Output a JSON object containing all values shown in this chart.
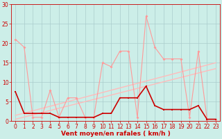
{
  "background_color": "#cceee8",
  "grid_color": "#aacccc",
  "xlabel": "Vent moyen/en rafales ( km/h )",
  "xlabel_color": "#cc0000",
  "xlabel_fontsize": 6.5,
  "tick_color": "#cc0000",
  "tick_fontsize": 5.5,
  "xlim": [
    -0.5,
    23.5
  ],
  "ylim": [
    0,
    30
  ],
  "yticks": [
    0,
    5,
    10,
    15,
    20,
    25,
    30
  ],
  "xticks": [
    0,
    1,
    2,
    3,
    4,
    5,
    6,
    7,
    8,
    9,
    10,
    11,
    12,
    13,
    14,
    15,
    16,
    17,
    18,
    19,
    20,
    21,
    22,
    23
  ],
  "line_light_x": [
    0,
    1,
    2,
    3,
    4,
    5,
    6,
    7,
    8,
    9,
    10,
    11,
    12,
    13,
    14,
    15,
    16,
    17,
    18,
    19,
    20,
    21,
    22,
    23
  ],
  "line_light_y": [
    21,
    19,
    1,
    1,
    8,
    1,
    6,
    6,
    1,
    1,
    15,
    14,
    18,
    18,
    1,
    27,
    19,
    16,
    16,
    16,
    1,
    18,
    0.5,
    0.5
  ],
  "line_dark_x": [
    0,
    1,
    2,
    3,
    4,
    5,
    6,
    7,
    8,
    9,
    10,
    11,
    12,
    13,
    14,
    15,
    16,
    17,
    18,
    19,
    20,
    21,
    22,
    23
  ],
  "line_dark_y": [
    7.5,
    2,
    2,
    2,
    2,
    1,
    1,
    1,
    1,
    1,
    2,
    2,
    6,
    6,
    6,
    9,
    4,
    3,
    3,
    3,
    3,
    4,
    0.5,
    0.5
  ],
  "line_trend1_x": [
    0,
    23
  ],
  "line_trend1_y": [
    1.5,
    15
  ],
  "line_trend2_x": [
    0,
    23
  ],
  "line_trend2_y": [
    0.5,
    13.5
  ],
  "light_color": "#ff9999",
  "dark_color": "#cc0000",
  "trend_color": "#ffbbbb",
  "spine_color": "#cc0000"
}
